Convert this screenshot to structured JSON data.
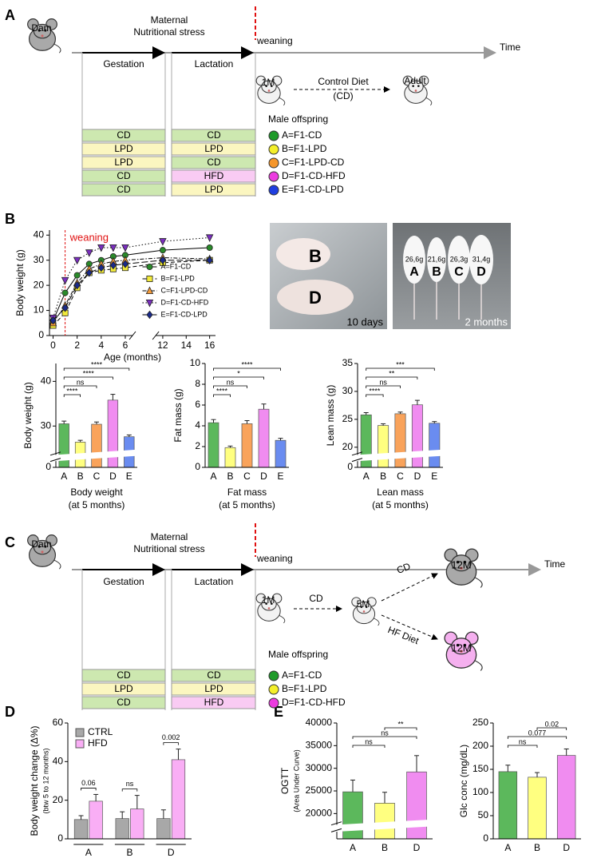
{
  "panel_labels": [
    "A",
    "B",
    "C",
    "D",
    "E"
  ],
  "diet_colors": {
    "CD": "#cde8b0",
    "LPD": "#fbf6c0",
    "HFD": "#f9cbf3"
  },
  "timeline_a": {
    "dam": "Dam",
    "stress": [
      "Maternal",
      "Nutritional stress"
    ],
    "weaning": "weaning",
    "time": "Time",
    "gestation": "Gestation",
    "lactation": "Lactation",
    "age": "1M",
    "diet": [
      "Control Diet",
      "(CD)"
    ],
    "adult": "Adult",
    "offspring": "Male offspring",
    "rows": [
      {
        "gestation": "CD",
        "lactation": "CD",
        "label": "A=F1-CD",
        "color": "#1f9a2a"
      },
      {
        "gestation": "LPD",
        "lactation": "LPD",
        "label": "B=F1-LPD",
        "color": "#f4ef2a"
      },
      {
        "gestation": "LPD",
        "lactation": "CD",
        "label": "C=F1-LPD-CD",
        "color": "#f5962a"
      },
      {
        "gestation": "CD",
        "lactation": "HFD",
        "label": "D=F1-CD-HFD",
        "color": "#ec3ce0"
      },
      {
        "gestation": "CD",
        "lactation": "LPD",
        "label": "E=F1-CD-LPD",
        "color": "#1f3fe0"
      }
    ]
  },
  "timeline_c": {
    "dam": "Dam",
    "stress": [
      "Maternal",
      "Nutritional stress"
    ],
    "weaning": "weaning",
    "time": "Time",
    "gestation": "Gestation",
    "lactation": "Lactation",
    "ages": [
      "1M",
      "5M",
      "12M",
      "12M"
    ],
    "diets": [
      "CD",
      "CD",
      "HF Diet"
    ],
    "offspring": "Male offspring",
    "rows": [
      {
        "gestation": "CD",
        "lactation": "CD",
        "label": "A=F1-CD",
        "color": "#1f9a2a"
      },
      {
        "gestation": "LPD",
        "lactation": "LPD",
        "label": "B=F1-LPD",
        "color": "#f4ef2a"
      },
      {
        "gestation": "CD",
        "lactation": "HFD",
        "label": "D=F1-CD-HFD",
        "color": "#ec3ce0"
      }
    ]
  },
  "photos": {
    "young": {
      "labels": [
        "B",
        "D"
      ],
      "caption": "10 days"
    },
    "adult": {
      "weights": [
        "26,6g",
        "21,6g",
        "26,3g",
        "31,4g"
      ],
      "labels": [
        "A",
        "B",
        "C",
        "D"
      ],
      "caption": "2 months"
    }
  },
  "chart_data": [
    {
      "type": "line",
      "ylabel": "Body weight (g)",
      "xlabel": "Age (months)",
      "x": [
        0,
        1,
        2,
        3,
        4,
        5,
        6,
        12,
        16
      ],
      "xlim": [
        -0.3,
        16.5
      ],
      "xbreak": [
        6.6,
        11.4
      ],
      "xticks": [
        0,
        2,
        4,
        6,
        12,
        14,
        16
      ],
      "ylim": [
        0,
        42
      ],
      "yticks": [
        0,
        10,
        20,
        30,
        40
      ],
      "legend": "lower-right",
      "annotations": [
        {
          "text": "weaning",
          "x": 1,
          "color": "#e01010"
        }
      ],
      "series": [
        {
          "name": "A=F1-CD",
          "color": "#2a8a2a",
          "marker": "circle",
          "dash": "solid",
          "values": [
            6,
            17,
            24,
            28.5,
            30,
            31.5,
            32,
            34,
            35
          ]
        },
        {
          "name": "B=F1-LPD",
          "color": "#f2ea3a",
          "marker": "square",
          "dash": "dashed",
          "values": [
            4,
            9,
            19,
            25,
            26,
            26.5,
            27,
            29,
            30
          ]
        },
        {
          "name": "C=F1-LPD-CD",
          "color": "#f39a3a",
          "marker": "triangle",
          "dash": "dashdot",
          "values": [
            5,
            12,
            21,
            26.5,
            28.5,
            29.5,
            30,
            31,
            30.5
          ]
        },
        {
          "name": "D=F1-CD-HFD",
          "color": "#7b2fbf",
          "marker": "triangle-down",
          "dash": "dotted",
          "values": [
            7,
            22,
            30,
            33,
            35,
            35,
            35,
            37.5,
            39
          ]
        },
        {
          "name": "E=F1-CD-LPD",
          "color": "#1a2a8a",
          "marker": "diamond",
          "dash": "longdash",
          "values": [
            6,
            11,
            20,
            25,
            27,
            28,
            28.5,
            30,
            30
          ]
        }
      ]
    },
    {
      "type": "bar",
      "ylabel": "Body weight (g)",
      "xlabel": [
        "Body weight",
        "(at 5 months)"
      ],
      "categories": [
        "A",
        "B",
        "C",
        "D",
        "E"
      ],
      "values": [
        30.5,
        26.4,
        30.4,
        35.8,
        27.6
      ],
      "errors": [
        0.6,
        0.4,
        0.5,
        1.3,
        0.4
      ],
      "colors": [
        "#5cb85c",
        "#ffff80",
        "#f9a35b",
        "#f08cf0",
        "#6a8cf0"
      ],
      "ylim": [
        0,
        44
      ],
      "ybreak": [
        3,
        24
      ],
      "yticks": [
        0,
        30,
        40
      ],
      "brackets": [
        {
          "from": 0,
          "to": 1,
          "label": "****"
        },
        {
          "from": 0,
          "to": 2,
          "label": "ns"
        },
        {
          "from": 0,
          "to": 3,
          "label": "****"
        },
        {
          "from": 0,
          "to": 4,
          "label": "****"
        }
      ]
    },
    {
      "type": "bar",
      "ylabel": "Fat mass (g)",
      "xlabel": [
        "Fat mass",
        "(at 5 months)"
      ],
      "categories": [
        "A",
        "B",
        "C",
        "D",
        "E"
      ],
      "values": [
        4.3,
        1.9,
        4.2,
        5.6,
        2.6
      ],
      "errors": [
        0.3,
        0.15,
        0.3,
        0.5,
        0.2
      ],
      "colors": [
        "#5cb85c",
        "#ffff80",
        "#f9a35b",
        "#f08cf0",
        "#6a8cf0"
      ],
      "ylim": [
        0,
        10
      ],
      "yticks": [
        0,
        2,
        4,
        6,
        8,
        10
      ],
      "brackets": [
        {
          "from": 0,
          "to": 1,
          "label": "****"
        },
        {
          "from": 0,
          "to": 2,
          "label": "ns"
        },
        {
          "from": 0,
          "to": 3,
          "label": "*"
        },
        {
          "from": 0,
          "to": 4,
          "label": "****"
        }
      ]
    },
    {
      "type": "bar",
      "ylabel": "Lean mass (g)",
      "xlabel": [
        "Lean mass",
        "(at 5 months)"
      ],
      "categories": [
        "A",
        "B",
        "C",
        "D",
        "E"
      ],
      "values": [
        25.8,
        23.9,
        26.0,
        27.6,
        24.3
      ],
      "errors": [
        0.4,
        0.3,
        0.3,
        0.8,
        0.3
      ],
      "colors": [
        "#5cb85c",
        "#ffff80",
        "#f9a35b",
        "#f08cf0",
        "#6a8cf0"
      ],
      "ylim": [
        0,
        35
      ],
      "ybreak": [
        2,
        19
      ],
      "yticks": [
        0,
        20,
        25,
        30,
        35
      ],
      "brackets": [
        {
          "from": 0,
          "to": 1,
          "label": "****"
        },
        {
          "from": 0,
          "to": 2,
          "label": "ns"
        },
        {
          "from": 0,
          "to": 3,
          "label": "**"
        },
        {
          "from": 0,
          "to": 4,
          "label": "***"
        }
      ]
    },
    {
      "type": "bar",
      "ylabel": [
        "Body weight change (Δ%)",
        "(btw 5 to 12 months)"
      ],
      "categories": [
        "A",
        "B",
        "D"
      ],
      "series": [
        {
          "name": "CTRL",
          "color": "#a8a8a8",
          "values": [
            10,
            10.5,
            10.5
          ],
          "errors": [
            2,
            3.5,
            4.5
          ]
        },
        {
          "name": "HFD",
          "color": "#f9aef5",
          "values": [
            19.5,
            15.5,
            41
          ],
          "errors": [
            3.5,
            7,
            5.5
          ]
        }
      ],
      "ylim": [
        0,
        60
      ],
      "yticks": [
        0,
        20,
        40,
        60
      ],
      "legend": "upper-left",
      "annotations": [
        {
          "category": 0,
          "label": "0.06"
        },
        {
          "category": 1,
          "label": "ns"
        },
        {
          "category": 2,
          "label": "0.002"
        }
      ]
    },
    {
      "type": "bar",
      "ylabel": [
        "OGTT",
        "(Area Under Curve)"
      ],
      "categories": [
        "A",
        "B",
        "D"
      ],
      "values": [
        24800,
        22300,
        29200
      ],
      "errors": [
        2600,
        2400,
        3600
      ],
      "colors": [
        "#5cb85c",
        "#ffff80",
        "#f08cf0"
      ],
      "ylim": [
        0,
        40000
      ],
      "ybreak": [
        2000,
        18000
      ],
      "yticks": [
        20000,
        25000,
        30000,
        35000,
        40000
      ],
      "brackets": [
        {
          "from": 0,
          "to": 1,
          "label": "ns"
        },
        {
          "from": 0,
          "to": 2,
          "label": "ns"
        },
        {
          "from": 1,
          "to": 2,
          "label": "**"
        }
      ]
    },
    {
      "type": "bar",
      "ylabel": "Glc conc (mg/dL)",
      "categories": [
        "A",
        "B",
        "D"
      ],
      "values": [
        145,
        133,
        180
      ],
      "errors": [
        14,
        10,
        14
      ],
      "colors": [
        "#5cb85c",
        "#ffff80",
        "#f08cf0"
      ],
      "ylim": [
        0,
        250
      ],
      "yticks": [
        0,
        50,
        100,
        150,
        200,
        250
      ],
      "brackets": [
        {
          "from": 0,
          "to": 1,
          "label": "ns"
        },
        {
          "from": 0,
          "to": 2,
          "label": "0.077"
        },
        {
          "from": 1,
          "to": 2,
          "label": "0.02"
        }
      ]
    }
  ]
}
